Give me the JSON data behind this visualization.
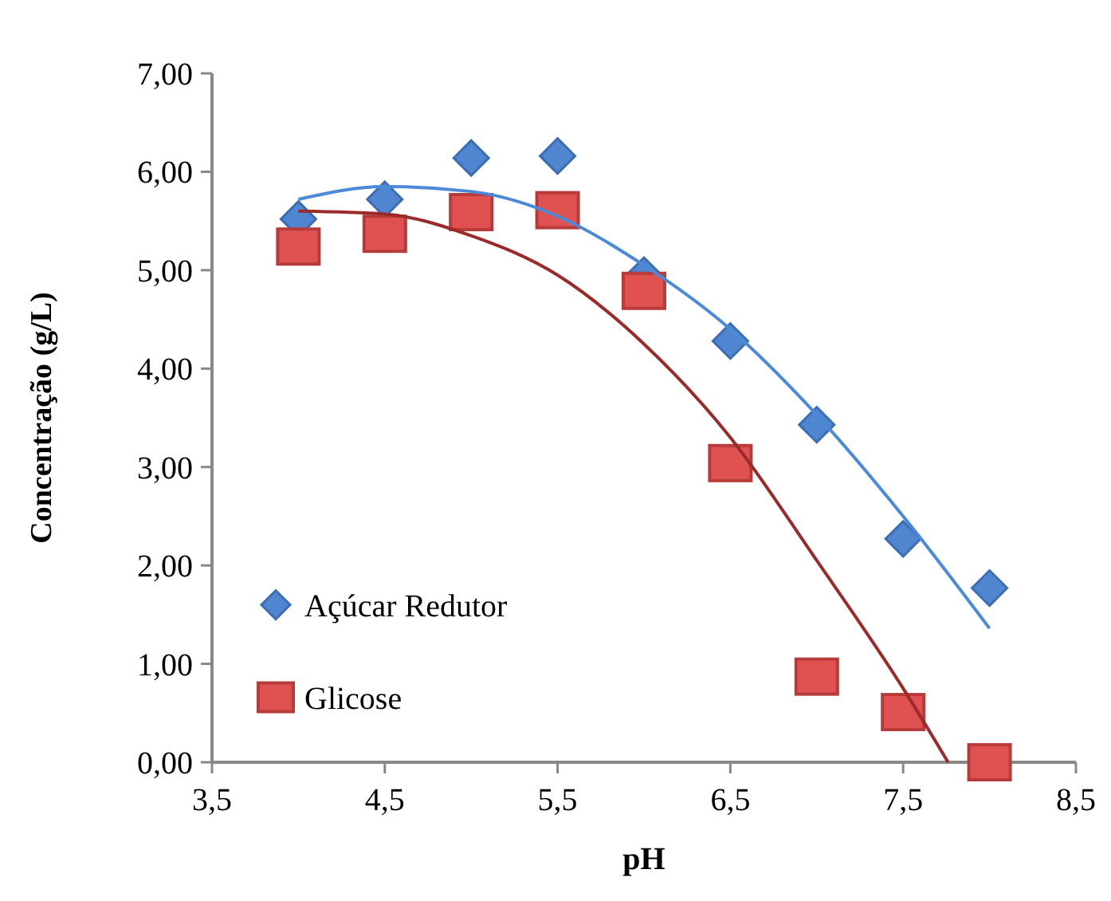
{
  "chart_data": {
    "type": "scatter",
    "xlabel": "pH",
    "ylabel": "Concentração (g/L)",
    "xlim": [
      3.5,
      8.5
    ],
    "ylim": [
      0,
      7
    ],
    "xticks": [
      {
        "value": 3.5,
        "label": "3,5"
      },
      {
        "value": 4.5,
        "label": "4,5"
      },
      {
        "value": 5.5,
        "label": "5,5"
      },
      {
        "value": 6.5,
        "label": "6,5"
      },
      {
        "value": 7.5,
        "label": "7,5"
      },
      {
        "value": 8.5,
        "label": "8,5"
      }
    ],
    "yticks": [
      {
        "value": 0,
        "label": "0,00"
      },
      {
        "value": 1,
        "label": "1,00"
      },
      {
        "value": 2,
        "label": "2,00"
      },
      {
        "value": 3,
        "label": "3,00"
      },
      {
        "value": 4,
        "label": "4,00"
      },
      {
        "value": 5,
        "label": "5,00"
      },
      {
        "value": 6,
        "label": "6,00"
      },
      {
        "value": 7,
        "label": "7,00"
      }
    ],
    "grid": false,
    "legend": "bottom left",
    "series": [
      {
        "type": "line",
        "color": "#4a8ad8",
        "marker": "none",
        "x": [
          4,
          4.5,
          5,
          5.5,
          6,
          6.5,
          7,
          7.5,
          8
        ],
        "values": [
          5.72,
          5.85,
          5.8,
          5.55,
          5.05,
          4.4,
          3.53,
          2.5,
          1.36
        ]
      },
      {
        "type": "line",
        "color": "#9b2a2a",
        "marker": "none",
        "x": [
          4,
          4.5,
          5,
          5.5,
          6,
          6.5,
          7,
          7.5,
          7.76
        ],
        "values": [
          5.6,
          5.57,
          5.35,
          4.95,
          4.25,
          3.3,
          2.05,
          0.75,
          0
        ]
      },
      {
        "name": "Açúcar Redutor",
        "color": "#4f86cf",
        "marker": "diamond",
        "x": [
          4,
          4.5,
          5,
          5.5,
          6,
          6.5,
          7,
          7.5,
          8
        ],
        "values": [
          5.52,
          5.72,
          6.14,
          6.16,
          4.95,
          4.28,
          3.43,
          2.27,
          1.77
        ]
      },
      {
        "name": "Glicose",
        "color": "#e05252",
        "marker": "square",
        "x": [
          4,
          4.5,
          5,
          5.5,
          6,
          6.5,
          7,
          7.5,
          8
        ],
        "values": [
          5.24,
          5.37,
          5.59,
          5.61,
          4.79,
          3.04,
          0.87,
          0.51,
          0
        ]
      }
    ]
  }
}
